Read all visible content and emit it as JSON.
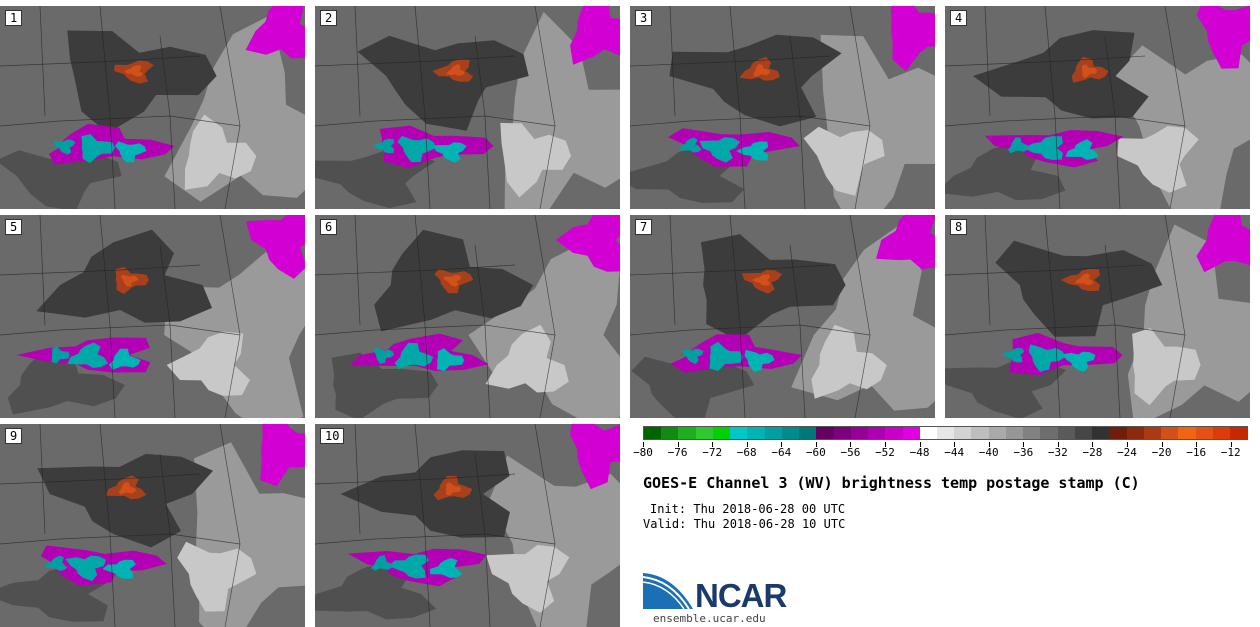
{
  "panels": [
    {
      "label": "1"
    },
    {
      "label": "2"
    },
    {
      "label": "3"
    },
    {
      "label": "4"
    },
    {
      "label": "5"
    },
    {
      "label": "6"
    },
    {
      "label": "7"
    },
    {
      "label": "8"
    },
    {
      "label": "9"
    },
    {
      "label": "10"
    }
  ],
  "colorbar": {
    "colors": [
      "#006400",
      "#108a10",
      "#1fae1f",
      "#2fc92f",
      "#00d200",
      "#00c8c8",
      "#00b4b4",
      "#00a0a0",
      "#008c8c",
      "#007878",
      "#640064",
      "#7d007d",
      "#960096",
      "#af00af",
      "#c800c8",
      "#e100e1",
      "#ffffff",
      "#e6e6e6",
      "#d2d2d2",
      "#bebebe",
      "#aaaaaa",
      "#969696",
      "#828282",
      "#6e6e6e",
      "#5a5a5a",
      "#464646",
      "#323232",
      "#6e1e0a",
      "#8c2a10",
      "#aa3a14",
      "#d2501a",
      "#f06414",
      "#e65014",
      "#dc3c0a",
      "#c82800"
    ],
    "tick_labels": [
      "−80",
      "−76",
      "−72",
      "−68",
      "−64",
      "−60",
      "−56",
      "−52",
      "−48",
      "−44",
      "−40",
      "−36",
      "−32",
      "−28",
      "−24",
      "−20",
      "−16",
      "−12"
    ]
  },
  "title": "GOES-E Channel 3 (WV) brightness temp postage stamp (C)",
  "init": "Init: Thu 2018-06-28 00 UTC",
  "valid": "Valid: Thu 2018-06-28 10 UTC",
  "logo": {
    "name": "NCAR",
    "url": "ensemble.ucar.edu"
  }
}
